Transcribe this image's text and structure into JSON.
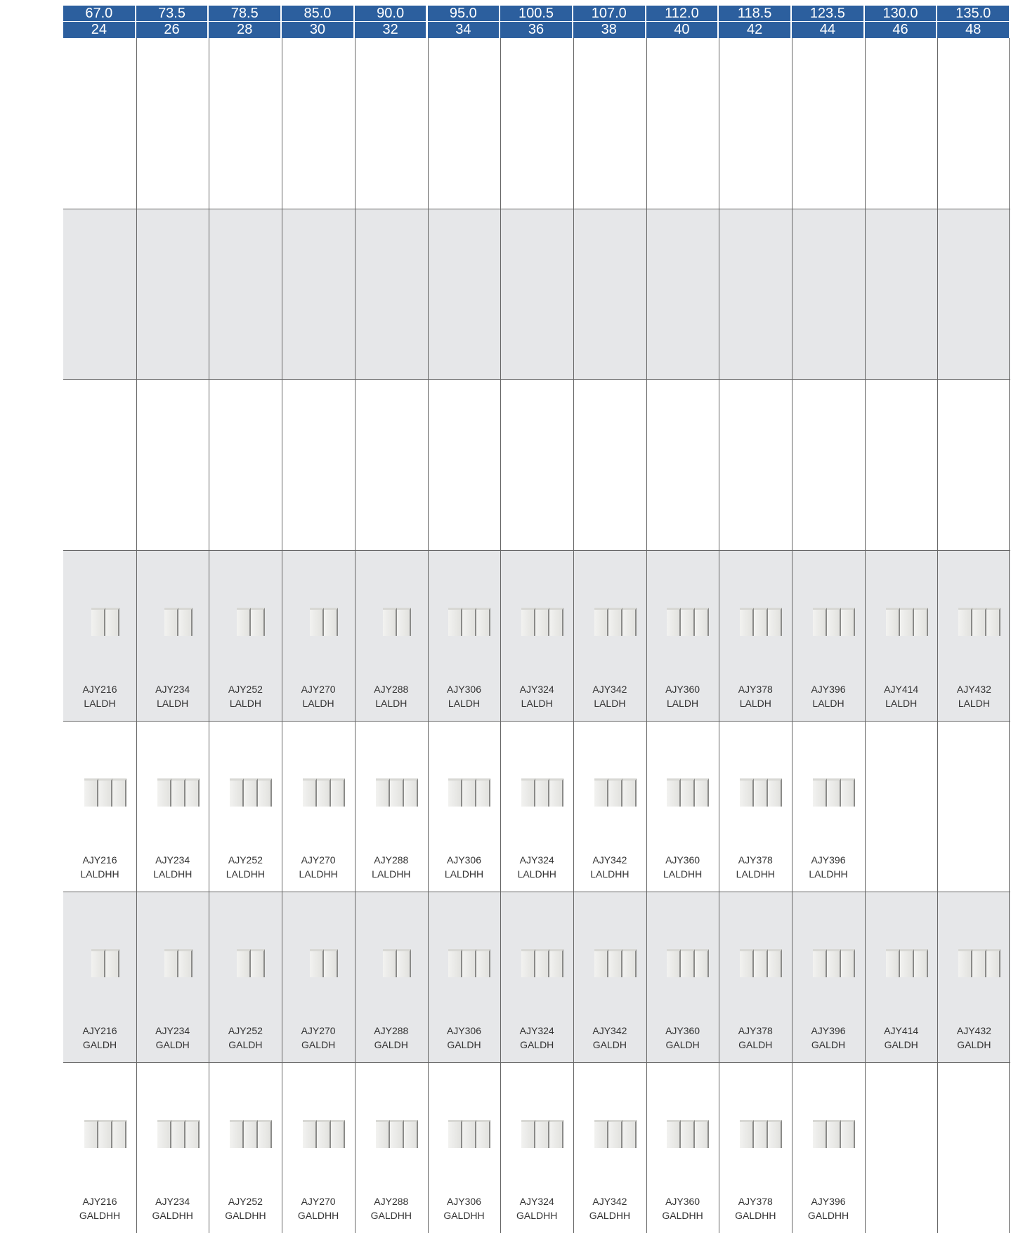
{
  "header": {
    "capacity": [
      "67.0",
      "73.5",
      "78.5",
      "85.0",
      "90.0",
      "95.0",
      "100.5",
      "107.0",
      "112.0",
      "118.5",
      "123.5",
      "130.0",
      "135.0"
    ],
    "hp": [
      24,
      26,
      28,
      30,
      32,
      34,
      36,
      38,
      40,
      42,
      44,
      46,
      48
    ]
  },
  "model_rows": [
    {
      "models": [
        {
          "line1": "AJY216",
          "line2": "LALDH"
        },
        {
          "line1": "AJY234",
          "line2": "LALDH"
        },
        {
          "line1": "AJY252",
          "line2": "LALDH"
        },
        {
          "line1": "AJY270",
          "line2": "LALDH"
        },
        {
          "line1": "AJY288",
          "line2": "LALDH"
        },
        {
          "line1": "AJY306",
          "line2": "LALDH"
        },
        {
          "line1": "AJY324",
          "line2": "LALDH"
        },
        {
          "line1": "AJY342",
          "line2": "LALDH"
        },
        {
          "line1": "AJY360",
          "line2": "LALDH"
        },
        {
          "line1": "AJY378",
          "line2": "LALDH"
        },
        {
          "line1": "AJY396",
          "line2": "LALDH"
        },
        {
          "line1": "AJY414",
          "line2": "LALDH"
        },
        {
          "line1": "AJY432",
          "line2": "LALDH"
        }
      ]
    },
    {
      "models": [
        {
          "line1": "AJY216",
          "line2": "LALDHH"
        },
        {
          "line1": "AJY234",
          "line2": "LALDHH"
        },
        {
          "line1": "AJY252",
          "line2": "LALDHH"
        },
        {
          "line1": "AJY270",
          "line2": "LALDHH"
        },
        {
          "line1": "AJY288",
          "line2": "LALDHH"
        },
        {
          "line1": "AJY306",
          "line2": "LALDHH"
        },
        {
          "line1": "AJY324",
          "line2": "LALDHH"
        },
        {
          "line1": "AJY342",
          "line2": "LALDHH"
        },
        {
          "line1": "AJY360",
          "line2": "LALDHH"
        },
        {
          "line1": "AJY378",
          "line2": "LALDHH"
        },
        {
          "line1": "AJY396",
          "line2": "LALDHH"
        }
      ]
    },
    {
      "models": [
        {
          "line1": "AJY216",
          "line2": "GALDH"
        },
        {
          "line1": "AJY234",
          "line2": "GALDH"
        },
        {
          "line1": "AJY252",
          "line2": "GALDH"
        },
        {
          "line1": "AJY270",
          "line2": "GALDH"
        },
        {
          "line1": "AJY288",
          "line2": "GALDH"
        },
        {
          "line1": "AJY306",
          "line2": "GALDH"
        },
        {
          "line1": "AJY324",
          "line2": "GALDH"
        },
        {
          "line1": "AJY342",
          "line2": "GALDH"
        },
        {
          "line1": "AJY360",
          "line2": "GALDH"
        },
        {
          "line1": "AJY378",
          "line2": "GALDH"
        },
        {
          "line1": "AJY396",
          "line2": "GALDH"
        },
        {
          "line1": "AJY414",
          "line2": "GALDH"
        },
        {
          "line1": "AJY432",
          "line2": "GALDH"
        }
      ]
    },
    {
      "models": [
        {
          "line1": "AJY216",
          "line2": "GALDHH"
        },
        {
          "line1": "AJY234",
          "line2": "GALDHH"
        },
        {
          "line1": "AJY252",
          "line2": "GALDHH"
        },
        {
          "line1": "AJY270",
          "line2": "GALDHH"
        },
        {
          "line1": "AJY288",
          "line2": "GALDHH"
        },
        {
          "line1": "AJY306",
          "line2": "GALDHH"
        },
        {
          "line1": "AJY324",
          "line2": "GALDHH"
        },
        {
          "line1": "AJY342",
          "line2": "GALDHH"
        },
        {
          "line1": "AJY360",
          "line2": "GALDHH"
        },
        {
          "line1": "AJY378",
          "line2": "GALDHH"
        },
        {
          "line1": "AJY396",
          "line2": "GALDHH"
        }
      ]
    }
  ]
}
